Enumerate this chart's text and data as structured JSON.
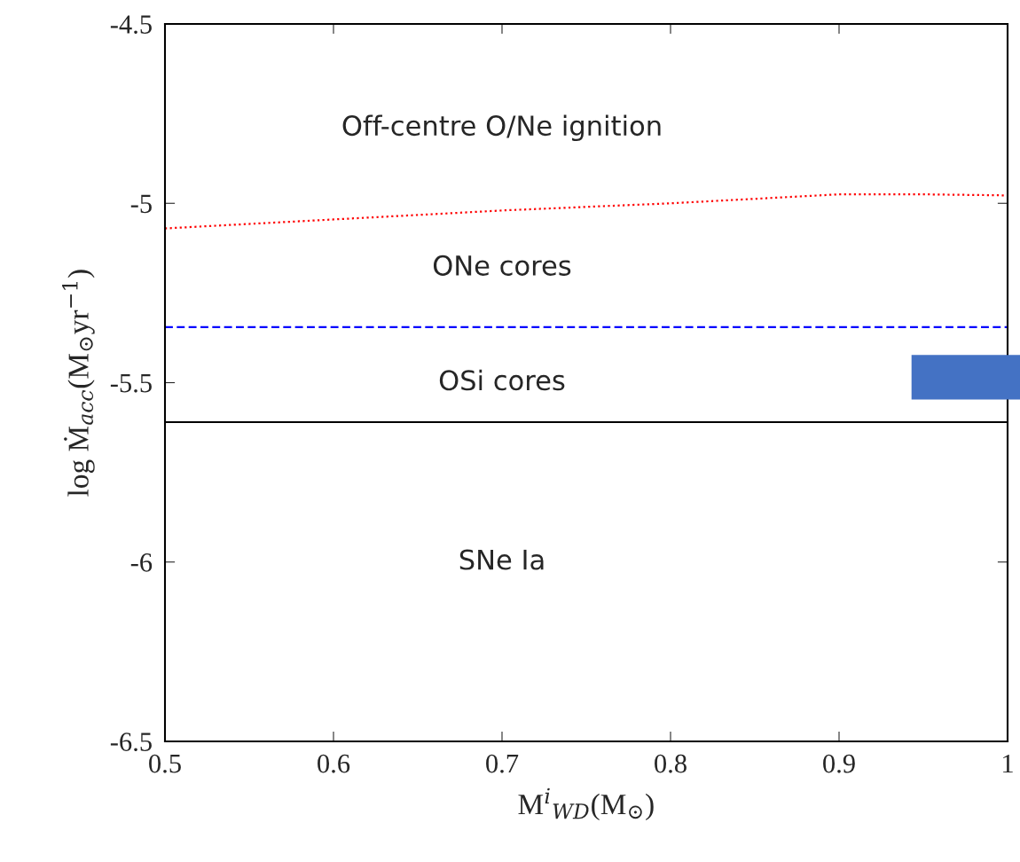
{
  "chart_data": {
    "type": "line",
    "xlabel": "M$^{i}$$_{WD}$(M$_{⊙}$)",
    "ylabel": "log Ṁ$_{acc}$(M$_{⊙}$yr$^{−1}$)",
    "series": [
      {
        "color": "#ff0000",
        "line_style": "dotted",
        "x": [
          0.5,
          0.6,
          0.7,
          0.8,
          0.9,
          0.95,
          1.0
        ],
        "values": [
          -5.07,
          -5.045,
          -5.02,
          -5.0,
          -4.975,
          -4.975,
          -4.978
        ]
      },
      {
        "color": "#0000ff",
        "line_style": "dashed",
        "x": [
          0.5,
          1.0
        ],
        "values": [
          -5.345,
          -5.345
        ]
      },
      {
        "color": "#000000",
        "line_style": "solid",
        "x": [
          0.5,
          1.0
        ],
        "values": [
          -5.61,
          -5.61
        ]
      }
    ],
    "annotations": [
      "Off-centre O/Ne ignition",
      "ONe cores",
      "OSi cores",
      "SNe Ia"
    ],
    "xlim": [
      0.5,
      1
    ],
    "ylim": [
      -6.5,
      -4.5
    ],
    "xticks": [
      0.5,
      0.6,
      0.7,
      0.8,
      0.9,
      1
    ],
    "yticks": [
      -6.5,
      -6,
      -5.5,
      -5,
      -4.5
    ],
    "grid": false
  }
}
